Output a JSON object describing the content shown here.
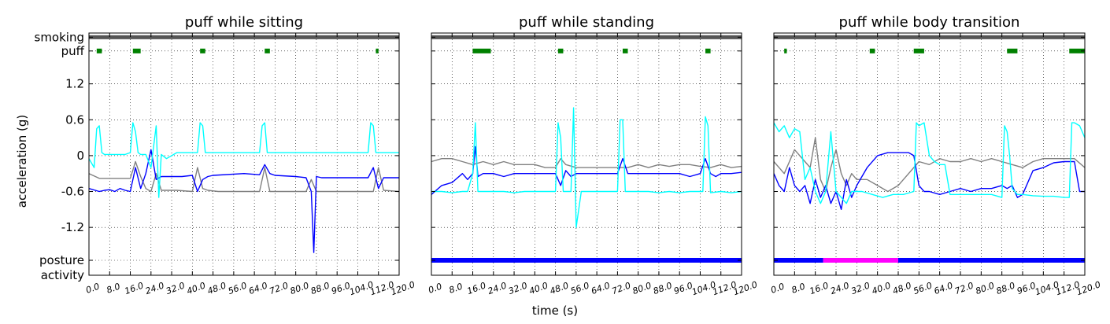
{
  "figure": {
    "xlabel": "time (s)",
    "ylabel": "acceleration (g)",
    "ytick_labels": [
      "smoking",
      "puff",
      "1.2",
      "0.6",
      "0",
      "-0.6",
      "-1.2",
      "posture",
      "activity"
    ],
    "xtick_labels": [
      "0.0",
      "8.0",
      "16.0",
      "24.0",
      "32.0",
      "40.0",
      "48.0",
      "56.0",
      "64.0",
      "72.0",
      "80.0",
      "88.0",
      "96.0",
      "104.0",
      "112.0",
      "120.0"
    ],
    "colors": {
      "accel_x": "#0000ff",
      "accel_y": "#00ffff",
      "accel_z": "#808080",
      "smoking": "#555555",
      "puff": "#008000",
      "posture_sitting_standing": "#0000ff",
      "posture_transition": "#ff00ff"
    }
  },
  "chart_data": [
    {
      "type": "line",
      "title": "puff while sitting",
      "xlim": [
        0,
        120
      ],
      "ylim": [
        -2.0,
        2.05
      ],
      "grid": true,
      "smoking_band": [
        [
          0,
          120
        ]
      ],
      "puff_intervals": [
        [
          3,
          5
        ],
        [
          17,
          20
        ],
        [
          43,
          45
        ],
        [
          68,
          70
        ],
        [
          111,
          112
        ]
      ],
      "posture_band": [],
      "series": [
        {
          "key": "x",
          "color": "#0000ff",
          "x": [
            0,
            4,
            6,
            8,
            10,
            12,
            14,
            16,
            18,
            20,
            22,
            24,
            26,
            28,
            30,
            32,
            36,
            40,
            42,
            44,
            46,
            48,
            60,
            66,
            68,
            70,
            72,
            80,
            84,
            86,
            87,
            88,
            90,
            100,
            108,
            110,
            112,
            114,
            120
          ],
          "y": [
            -0.55,
            -0.6,
            -0.58,
            -0.57,
            -0.6,
            -0.55,
            -0.58,
            -0.6,
            -0.2,
            -0.55,
            -0.3,
            0.1,
            -0.4,
            -0.35,
            -0.35,
            -0.35,
            -0.35,
            -0.33,
            -0.6,
            -0.4,
            -0.35,
            -0.33,
            -0.3,
            -0.32,
            -0.15,
            -0.3,
            -0.33,
            -0.35,
            -0.37,
            -0.6,
            -1.62,
            -0.35,
            -0.37,
            -0.37,
            -0.37,
            -0.2,
            -0.55,
            -0.37,
            -0.37
          ]
        },
        {
          "key": "y",
          "color": "#00ffff",
          "x": [
            0,
            2,
            3,
            4,
            5,
            6,
            10,
            14,
            16,
            17,
            18,
            19,
            20,
            22,
            24,
            26,
            27,
            28,
            30,
            34,
            38,
            40,
            42,
            43,
            44,
            45,
            46,
            50,
            60,
            64,
            66,
            67,
            68,
            69,
            70,
            72,
            80,
            90,
            100,
            106,
            108,
            109,
            110,
            111,
            112,
            113,
            114,
            120
          ],
          "y": [
            -0.05,
            -0.2,
            0.45,
            0.5,
            0.05,
            0.02,
            0.02,
            0.02,
            0.05,
            0.55,
            0.4,
            0.05,
            0.02,
            0.02,
            -0.2,
            0.5,
            -0.7,
            0.02,
            -0.05,
            0.05,
            0.05,
            0.05,
            0.05,
            0.55,
            0.5,
            0.05,
            0.05,
            0.05,
            0.05,
            0.05,
            0.05,
            0.5,
            0.55,
            0.05,
            0.05,
            0.05,
            0.05,
            0.05,
            0.05,
            0.05,
            0.05,
            0.55,
            0.5,
            0.05,
            0.05,
            0.05,
            0.05,
            0.05
          ]
        },
        {
          "key": "z",
          "color": "#808080",
          "x": [
            0,
            4,
            6,
            10,
            14,
            16,
            18,
            20,
            22,
            24,
            26,
            28,
            30,
            32,
            34,
            40,
            42,
            44,
            46,
            50,
            60,
            66,
            68,
            70,
            72,
            80,
            84,
            86,
            88,
            100,
            108,
            110,
            112,
            114,
            120
          ],
          "y": [
            -0.3,
            -0.38,
            -0.38,
            -0.38,
            -0.38,
            -0.38,
            -0.1,
            -0.35,
            -0.55,
            -0.6,
            -0.3,
            -0.58,
            -0.58,
            -0.58,
            -0.58,
            -0.6,
            -0.2,
            -0.55,
            -0.58,
            -0.6,
            -0.6,
            -0.6,
            -0.2,
            -0.6,
            -0.6,
            -0.6,
            -0.6,
            -0.4,
            -0.6,
            -0.6,
            -0.6,
            -0.6,
            -0.2,
            -0.58,
            -0.6
          ]
        }
      ]
    },
    {
      "type": "line",
      "title": "puff while standing",
      "xlim": [
        0,
        120
      ],
      "ylim": [
        -2.0,
        2.05
      ],
      "grid": true,
      "smoking_band": [
        [
          0,
          120
        ]
      ],
      "puff_intervals": [
        [
          16,
          23
        ],
        [
          49,
          51
        ],
        [
          74,
          76
        ],
        [
          106,
          108
        ]
      ],
      "posture_band": [
        {
          "range": [
            0,
            120
          ],
          "color": "#0000ff"
        }
      ],
      "series": [
        {
          "key": "x",
          "color": "#0000ff",
          "x": [
            0,
            4,
            8,
            12,
            14,
            16,
            17,
            18,
            20,
            24,
            28,
            32,
            36,
            40,
            44,
            48,
            50,
            52,
            54,
            56,
            60,
            64,
            68,
            72,
            74,
            76,
            78,
            80,
            84,
            88,
            92,
            96,
            100,
            104,
            106,
            108,
            110,
            112,
            116,
            120
          ],
          "y": [
            -0.65,
            -0.5,
            -0.45,
            -0.3,
            -0.4,
            -0.3,
            0.15,
            -0.35,
            -0.3,
            -0.3,
            -0.35,
            -0.3,
            -0.3,
            -0.3,
            -0.3,
            -0.3,
            -0.5,
            -0.25,
            -0.35,
            -0.3,
            -0.3,
            -0.3,
            -0.3,
            -0.3,
            -0.05,
            -0.3,
            -0.3,
            -0.3,
            -0.3,
            -0.3,
            -0.3,
            -0.3,
            -0.35,
            -0.3,
            -0.05,
            -0.3,
            -0.35,
            -0.3,
            -0.3,
            -0.28
          ]
        },
        {
          "key": "y",
          "color": "#00ffff",
          "x": [
            0,
            4,
            8,
            12,
            14,
            16,
            17,
            18,
            20,
            24,
            28,
            32,
            36,
            40,
            44,
            48,
            49,
            50,
            51,
            52,
            54,
            55,
            56,
            58,
            60,
            64,
            68,
            72,
            73,
            74,
            75,
            76,
            80,
            84,
            88,
            92,
            96,
            100,
            104,
            105,
            106,
            107,
            108,
            112,
            116,
            120
          ],
          "y": [
            -0.6,
            -0.6,
            -0.62,
            -0.6,
            -0.6,
            -0.3,
            0.55,
            -0.6,
            -0.6,
            -0.6,
            -0.6,
            -0.62,
            -0.6,
            -0.6,
            -0.6,
            -0.6,
            0.55,
            0.3,
            -0.6,
            -0.6,
            -0.6,
            0.8,
            -1.2,
            -0.6,
            -0.6,
            -0.6,
            -0.6,
            -0.6,
            0.6,
            0.6,
            -0.6,
            -0.6,
            -0.6,
            -0.6,
            -0.62,
            -0.6,
            -0.62,
            -0.6,
            -0.6,
            -0.6,
            0.65,
            0.5,
            -0.62,
            -0.6,
            -0.62,
            -0.6
          ]
        },
        {
          "key": "z",
          "color": "#808080",
          "x": [
            0,
            4,
            8,
            12,
            16,
            20,
            24,
            28,
            32,
            36,
            40,
            44,
            48,
            50,
            52,
            56,
            60,
            64,
            68,
            72,
            76,
            80,
            84,
            88,
            92,
            96,
            100,
            104,
            108,
            112,
            116,
            120
          ],
          "y": [
            -0.1,
            -0.05,
            -0.05,
            -0.1,
            -0.15,
            -0.1,
            -0.15,
            -0.1,
            -0.15,
            -0.15,
            -0.15,
            -0.2,
            -0.2,
            -0.05,
            -0.15,
            -0.2,
            -0.2,
            -0.2,
            -0.2,
            -0.2,
            -0.2,
            -0.15,
            -0.2,
            -0.15,
            -0.18,
            -0.15,
            -0.15,
            -0.18,
            -0.2,
            -0.15,
            -0.2,
            -0.18
          ]
        }
      ]
    },
    {
      "type": "line",
      "title": "puff while body transition",
      "xlim": [
        0,
        120
      ],
      "ylim": [
        -2.0,
        2.05
      ],
      "grid": true,
      "smoking_band": [
        [
          0,
          120
        ]
      ],
      "puff_intervals": [
        [
          4,
          5
        ],
        [
          37,
          39
        ],
        [
          54,
          58
        ],
        [
          90,
          94
        ],
        [
          114,
          120
        ]
      ],
      "posture_band": [
        {
          "range": [
            0,
            19
          ],
          "color": "#0000ff"
        },
        {
          "range": [
            19,
            48
          ],
          "color": "#ff00ff"
        },
        {
          "range": [
            48,
            120
          ],
          "color": "#0000ff"
        }
      ],
      "series": [
        {
          "key": "x",
          "color": "#0000ff",
          "x": [
            0,
            2,
            4,
            6,
            8,
            10,
            12,
            14,
            16,
            18,
            20,
            22,
            24,
            26,
            28,
            30,
            32,
            36,
            40,
            44,
            48,
            52,
            54,
            56,
            58,
            60,
            64,
            68,
            72,
            76,
            80,
            84,
            88,
            90,
            92,
            94,
            96,
            100,
            104,
            108,
            112,
            116,
            118,
            120
          ],
          "y": [
            -0.3,
            -0.5,
            -0.6,
            -0.2,
            -0.5,
            -0.6,
            -0.5,
            -0.8,
            -0.4,
            -0.7,
            -0.5,
            -0.8,
            -0.6,
            -0.9,
            -0.4,
            -0.7,
            -0.5,
            -0.2,
            0.0,
            0.05,
            0.05,
            0.05,
            0.0,
            -0.5,
            -0.6,
            -0.6,
            -0.65,
            -0.6,
            -0.55,
            -0.6,
            -0.55,
            -0.55,
            -0.5,
            -0.55,
            -0.5,
            -0.7,
            -0.65,
            -0.25,
            -0.2,
            -0.12,
            -0.1,
            -0.1,
            -0.6,
            -0.6
          ]
        },
        {
          "key": "y",
          "color": "#00ffff",
          "x": [
            0,
            2,
            4,
            6,
            8,
            10,
            12,
            14,
            16,
            18,
            20,
            22,
            24,
            26,
            28,
            30,
            34,
            38,
            42,
            46,
            50,
            54,
            55,
            56,
            58,
            60,
            62,
            64,
            66,
            68,
            72,
            76,
            80,
            84,
            88,
            89,
            90,
            91,
            92,
            94,
            96,
            100,
            104,
            108,
            112,
            114,
            115,
            116,
            118,
            120
          ],
          "y": [
            0.55,
            0.4,
            0.5,
            0.3,
            0.45,
            0.4,
            -0.4,
            -0.2,
            -0.6,
            -0.8,
            -0.6,
            0.4,
            -0.6,
            -0.7,
            -0.8,
            -0.6,
            -0.6,
            -0.65,
            -0.7,
            -0.65,
            -0.65,
            -0.6,
            0.55,
            0.5,
            0.55,
            0.0,
            -0.1,
            -0.15,
            -0.15,
            -0.65,
            -0.65,
            -0.65,
            -0.65,
            -0.65,
            -0.7,
            0.5,
            0.4,
            0.0,
            -0.55,
            -0.65,
            -0.65,
            -0.67,
            -0.68,
            -0.68,
            -0.7,
            -0.7,
            0.55,
            0.55,
            0.5,
            0.3
          ]
        },
        {
          "key": "z",
          "color": "#808080",
          "x": [
            0,
            2,
            4,
            6,
            8,
            10,
            12,
            14,
            16,
            18,
            20,
            22,
            24,
            26,
            28,
            30,
            32,
            36,
            40,
            44,
            48,
            52,
            56,
            60,
            64,
            68,
            72,
            76,
            80,
            84,
            88,
            92,
            96,
            100,
            104,
            108,
            112,
            116,
            120
          ],
          "y": [
            -0.1,
            -0.2,
            -0.3,
            -0.1,
            0.1,
            0.0,
            -0.1,
            -0.2,
            0.3,
            -0.4,
            -0.6,
            -0.2,
            0.1,
            -0.3,
            -0.5,
            -0.3,
            -0.4,
            -0.4,
            -0.5,
            -0.6,
            -0.5,
            -0.3,
            -0.1,
            -0.15,
            -0.05,
            -0.1,
            -0.1,
            -0.05,
            -0.1,
            -0.05,
            -0.1,
            -0.15,
            -0.2,
            -0.1,
            -0.05,
            -0.05,
            -0.05,
            -0.05,
            -0.2
          ]
        }
      ]
    }
  ]
}
